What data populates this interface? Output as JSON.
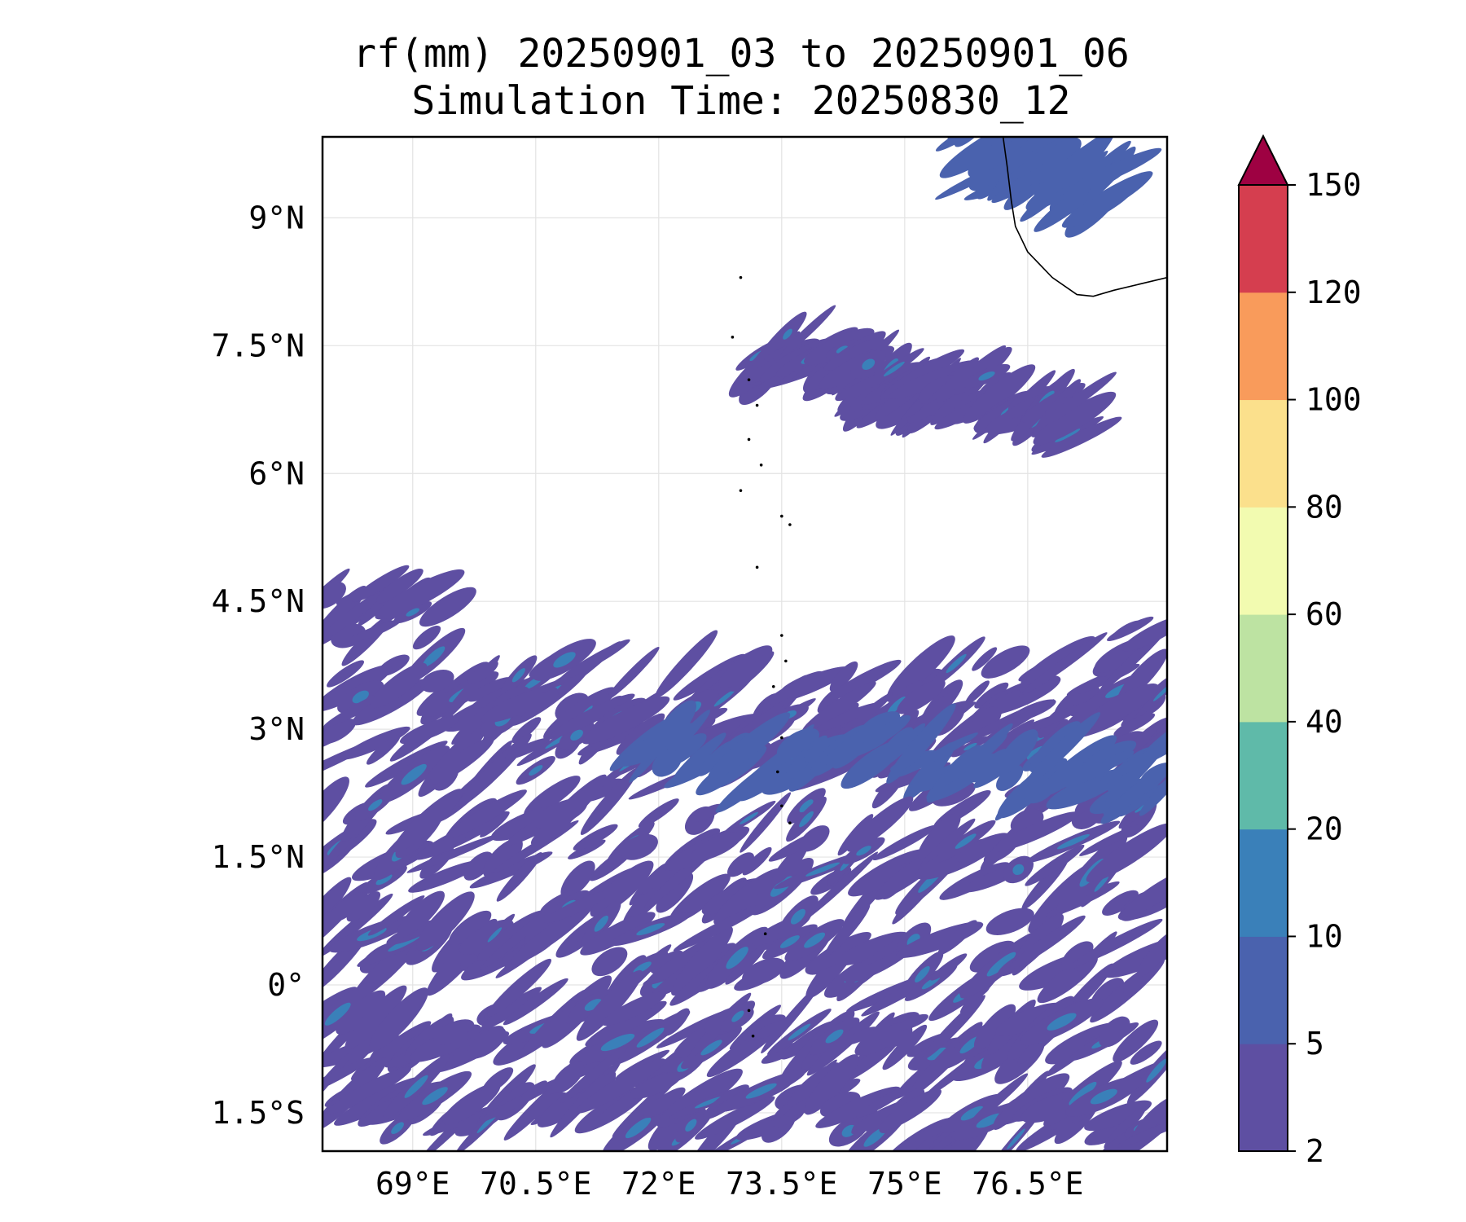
{
  "chart_data": {
    "type": "heatmap",
    "title": "rf(mm) 20250901_03 to 20250901_06",
    "subtitle": "Simulation Time: 20250830_12",
    "xlabel": "",
    "ylabel": "",
    "xlim": [
      67.9,
      78.2
    ],
    "ylim": [
      -1.95,
      9.95
    ],
    "grid": true,
    "x_ticks": [
      {
        "value": 69.0,
        "label": "69°E"
      },
      {
        "value": 70.5,
        "label": "70.5°E"
      },
      {
        "value": 72.0,
        "label": "72°E"
      },
      {
        "value": 73.5,
        "label": "73.5°E"
      },
      {
        "value": 75.0,
        "label": "75°E"
      },
      {
        "value": 76.5,
        "label": "76.5°E"
      }
    ],
    "y_ticks": [
      {
        "value": 9.0,
        "label": "9°N"
      },
      {
        "value": 7.5,
        "label": "7.5°N"
      },
      {
        "value": 6.0,
        "label": "6°N"
      },
      {
        "value": 4.5,
        "label": "4.5°N"
      },
      {
        "value": 3.0,
        "label": "3°N"
      },
      {
        "value": 1.5,
        "label": "1.5°N"
      },
      {
        "value": 0.0,
        "label": "0°"
      },
      {
        "value": -1.5,
        "label": "1.5°S"
      }
    ],
    "colorbar": {
      "levels": [
        2,
        5,
        10,
        20,
        40,
        60,
        80,
        100,
        120,
        150
      ],
      "labels": [
        "2",
        "5",
        "10",
        "20",
        "40",
        "60",
        "80",
        "100",
        "120",
        "150"
      ],
      "colors": [
        "#5e4fa2",
        "#4a62ae",
        "#3a80b9",
        "#5fbaa9",
        "#bde3a2",
        "#f2fbb0",
        "#fbe08c",
        "#f99b5b",
        "#d53e4f"
      ],
      "extend_color": "#9e0142",
      "extend": "max"
    },
    "rain_bands": [
      {
        "lon": [
          67.9,
          69.0,
          70.2,
          71.5,
          72.8,
          74.0,
          75.2,
          76.4,
          77.5,
          78.2
        ],
        "lat": [
          4.6,
          4.1,
          3.5,
          3.2,
          3.3,
          3.1,
          3.2,
          3.3,
          3.6,
          3.7
        ],
        "width": 0.28,
        "level": 0
      },
      {
        "lon": [
          67.9,
          69.2,
          70.6,
          72.0,
          73.4,
          74.8,
          76.2,
          77.4,
          78.2
        ],
        "lat": [
          3.1,
          3.0,
          2.7,
          2.6,
          2.5,
          2.8,
          2.7,
          2.6,
          2.6
        ],
        "width": 0.34,
        "level": 0
      },
      {
        "lon": [
          71.8,
          73.2,
          74.6,
          76.0,
          77.3,
          78.2
        ],
        "lat": [
          2.9,
          2.6,
          2.8,
          2.6,
          2.5,
          2.4
        ],
        "width": 0.14,
        "level": 1
      },
      {
        "lon": [
          67.9,
          69.4,
          70.8,
          72.3,
          73.7,
          75.1,
          76.6,
          78.2
        ],
        "lat": [
          1.8,
          1.5,
          1.7,
          1.3,
          1.6,
          1.4,
          1.5,
          1.2
        ],
        "width": 0.22,
        "level": 0
      },
      {
        "lon": [
          67.9,
          69.3,
          70.7,
          72.1,
          73.6,
          75.0,
          76.5,
          78.2
        ],
        "lat": [
          0.7,
          0.4,
          0.6,
          0.3,
          0.5,
          0.2,
          0.4,
          0.1
        ],
        "width": 0.2,
        "level": 0
      },
      {
        "lon": [
          67.9,
          69.2,
          70.6,
          72.0,
          73.5,
          75.0,
          76.4,
          78.2
        ],
        "lat": [
          -0.4,
          -0.6,
          -0.3,
          -0.7,
          -0.5,
          -0.8,
          -0.6,
          -0.9
        ],
        "width": 0.18,
        "level": 0
      },
      {
        "lon": [
          67.9,
          69.5,
          71.0,
          72.5,
          74.0,
          75.5,
          77.0,
          78.2
        ],
        "lat": [
          -1.3,
          -1.5,
          -1.2,
          -1.6,
          -1.4,
          -1.7,
          -1.5,
          -1.6
        ],
        "width": 0.14,
        "level": 0
      },
      {
        "lon": [
          75.8,
          76.4,
          77.0,
          77.6
        ],
        "lat": [
          9.9,
          9.7,
          9.4,
          9.3
        ],
        "width": 0.22,
        "level": 1
      },
      {
        "lon": [
          73.2,
          73.6,
          74.2,
          74.7,
          75.3,
          75.9,
          76.6,
          77.2
        ],
        "lat": [
          7.2,
          7.5,
          7.3,
          7.1,
          6.9,
          7.0,
          6.8,
          6.6
        ],
        "width": 0.12,
        "level": 0
      }
    ],
    "coastline": {
      "india_lon": [
        76.2,
        76.25,
        76.3,
        76.35,
        76.5,
        76.8,
        77.1,
        77.3,
        77.55,
        78.2
      ],
      "india_lat": [
        9.95,
        9.6,
        9.2,
        8.9,
        8.6,
        8.3,
        8.1,
        8.08,
        8.15,
        8.3
      ],
      "islands": [
        [
          73.0,
          8.3
        ],
        [
          72.9,
          7.6
        ],
        [
          73.1,
          7.1
        ],
        [
          73.2,
          6.8
        ],
        [
          73.1,
          6.4
        ],
        [
          73.25,
          6.1
        ],
        [
          73.0,
          5.8
        ],
        [
          73.5,
          5.5
        ],
        [
          73.6,
          5.4
        ],
        [
          73.2,
          4.9
        ],
        [
          73.5,
          4.1
        ],
        [
          73.55,
          3.8
        ],
        [
          73.4,
          3.5
        ],
        [
          73.5,
          2.9
        ],
        [
          73.45,
          2.5
        ],
        [
          73.5,
          2.1
        ],
        [
          73.6,
          1.9
        ],
        [
          73.3,
          0.6
        ],
        [
          73.1,
          -0.3
        ],
        [
          73.15,
          -0.6
        ]
      ]
    }
  }
}
